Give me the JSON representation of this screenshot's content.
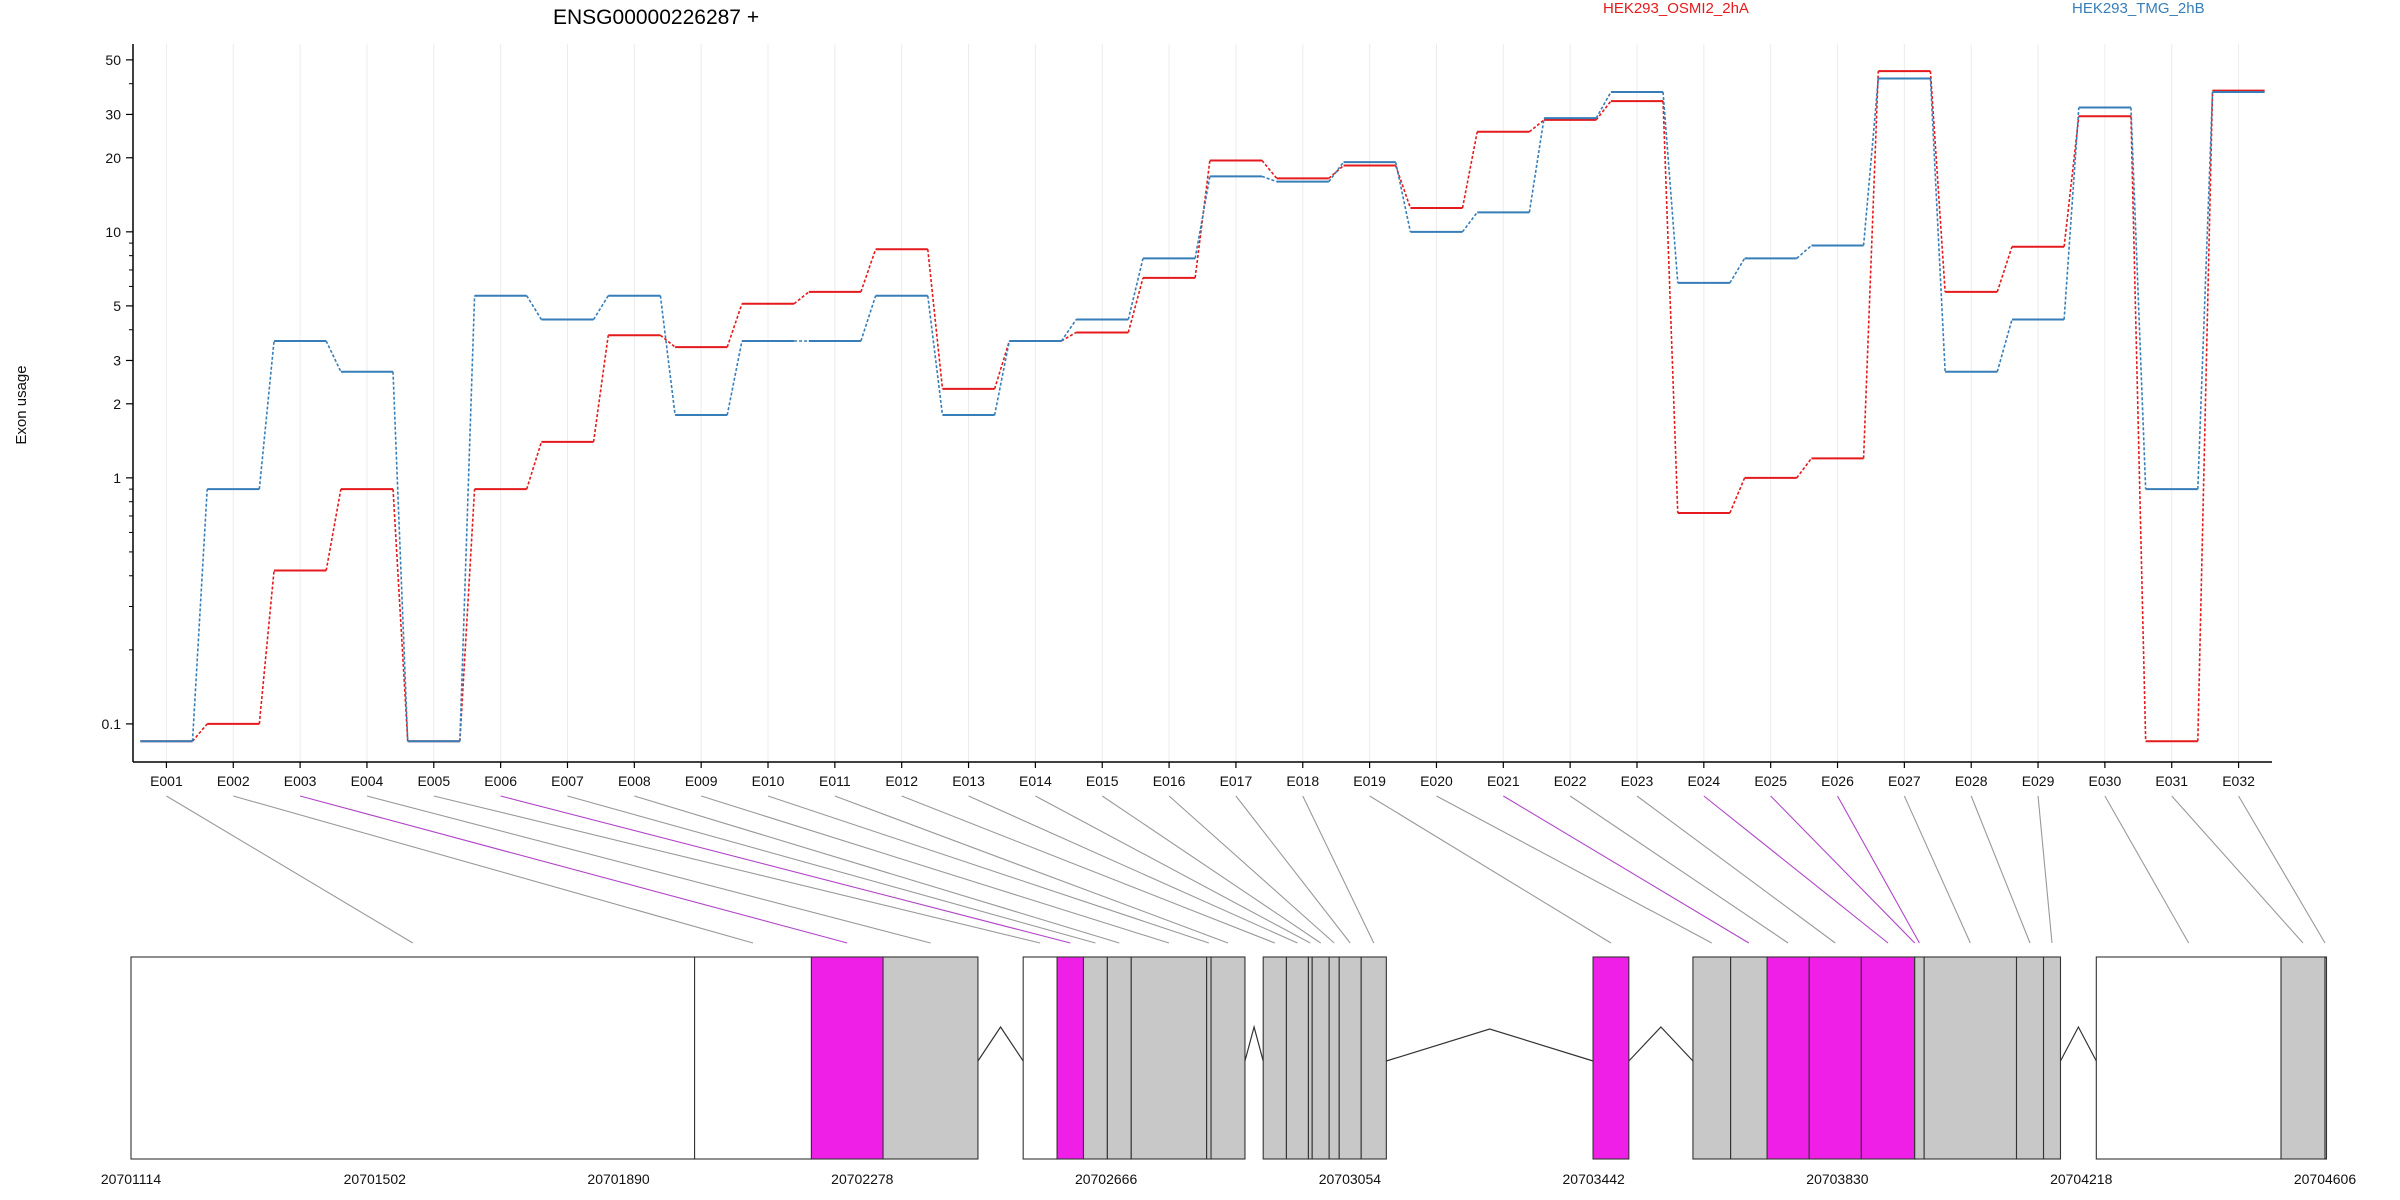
{
  "chart_data": {
    "type": "line",
    "title": "ENSG00000226287 +",
    "ylabel": "Exon usage",
    "xlabel": "",
    "y_scale": "log",
    "ylim": [
      0.07,
      58
    ],
    "y_ticks": [
      0.1,
      1,
      2,
      3,
      5,
      10,
      20,
      30,
      50
    ],
    "y_tick_labels": [
      "0.1",
      "1",
      "2",
      "3",
      "5",
      "10",
      "20",
      "30",
      "50"
    ],
    "grid": "vertical lines at each exon, light",
    "legend_placement": "top",
    "categories": [
      "E001",
      "E002",
      "E003",
      "E004",
      "E005",
      "E006",
      "E007",
      "E008",
      "E009",
      "E010",
      "E011",
      "E012",
      "E013",
      "E014",
      "E015",
      "E016",
      "E017",
      "E018",
      "E019",
      "E020",
      "E021",
      "E022",
      "E023",
      "E024",
      "E025",
      "E026",
      "E027",
      "E028",
      "E029",
      "E030",
      "E031",
      "E032"
    ],
    "series": [
      {
        "name": "HEK293_OSMI2_2hA",
        "color": "#e41a1c",
        "values": [
          0.085,
          0.1,
          0.42,
          0.9,
          0.085,
          0.9,
          1.4,
          3.8,
          3.4,
          5.1,
          5.7,
          8.5,
          2.3,
          3.6,
          3.9,
          6.5,
          19.5,
          16.5,
          18.6,
          12.5,
          25.5,
          28.5,
          34.0,
          0.72,
          1.0,
          1.2,
          45.0,
          5.7,
          8.7,
          29.5,
          0.085,
          37.5
        ]
      },
      {
        "name": "HEK293_TMG_2hB",
        "color": "#377eb8",
        "values": [
          0.085,
          0.9,
          3.6,
          2.7,
          0.085,
          5.5,
          4.4,
          5.5,
          1.8,
          3.6,
          3.6,
          5.5,
          1.8,
          3.6,
          4.4,
          7.8,
          16.8,
          16.0,
          19.2,
          10.0,
          12.0,
          29.0,
          37.0,
          6.2,
          7.8,
          8.8,
          42.0,
          2.7,
          4.4,
          32.0,
          0.9,
          37.0
        ]
      }
    ],
    "gene_model": {
      "coordinate_labels": [
        "20701114",
        "20701502",
        "20701890",
        "20702278",
        "20702666",
        "20703054",
        "20703442",
        "20703830",
        "20704218",
        "20704606"
      ],
      "exon_spans": [
        [
          20701114,
          20702011
        ],
        [
          20702011,
          20702197
        ],
        [
          20702197,
          20702311
        ],
        [
          20702311,
          20702462
        ],
        [
          20702534,
          20702588
        ],
        [
          20702588,
          20702630
        ],
        [
          20702630,
          20702668
        ],
        [
          20702668,
          20702706
        ],
        [
          20702706,
          20702826
        ],
        [
          20702826,
          20702833
        ],
        [
          20702833,
          20702887
        ],
        [
          20702916,
          20702953
        ],
        [
          20702953,
          20702988
        ],
        [
          20702988,
          20702994
        ],
        [
          20702994,
          20703021
        ],
        [
          20703021,
          20703037
        ],
        [
          20703037,
          20703072
        ],
        [
          20703072,
          20703112
        ],
        [
          20703441,
          20703498
        ],
        [
          20703600,
          20703660
        ],
        [
          20703660,
          20703718
        ],
        [
          20703718,
          20703785
        ],
        [
          20703785,
          20703868
        ],
        [
          20703868,
          20703953
        ],
        [
          20703953,
          20703953
        ],
        [
          20703953,
          20703968
        ],
        [
          20703968,
          20704115
        ],
        [
          20704115,
          20704158
        ],
        [
          20704158,
          20704185
        ],
        [
          20704242,
          20704536
        ],
        [
          20704536,
          20704606
        ],
        [
          20704606,
          20704606
        ]
      ],
      "exon_types": [
        "open",
        "open",
        "tested",
        "gray",
        "open",
        "tested",
        "gray",
        "gray",
        "gray",
        "gray",
        "gray",
        "gray",
        "gray",
        "gray",
        "gray",
        "gray",
        "gray",
        "gray",
        "tested",
        "gray",
        "gray",
        "tested",
        "tested",
        "tested",
        "gray",
        "gray",
        "gray",
        "gray",
        "gray",
        "open",
        "gray",
        "gray"
      ],
      "highlighted_exons": [
        "E003",
        "E006",
        "E021",
        "E024",
        "E025",
        "E026"
      ],
      "colors": {
        "tested": "#f01fe8",
        "gray": "#c8c8c8",
        "open": "#ffffff",
        "highlight_line": "#b145c8",
        "plain_line": "#999999"
      }
    }
  }
}
